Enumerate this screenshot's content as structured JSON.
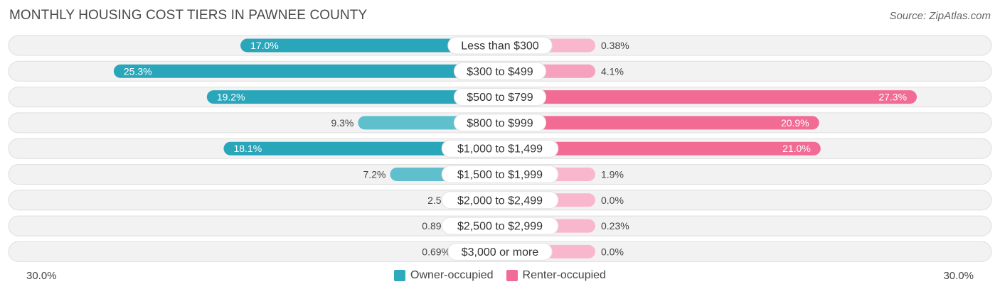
{
  "title": "MONTHLY HOUSING COST TIERS IN PAWNEE COUNTY",
  "source": "Source: ZipAtlas.com",
  "axis": {
    "left_label": "30.0%",
    "right_label": "30.0%"
  },
  "legend": [
    {
      "label": "Owner-occupied",
      "color": "#2eaabd"
    },
    {
      "label": "Renter-occupied",
      "color": "#f06c97"
    }
  ],
  "chart_data": {
    "type": "bar",
    "orientation": "diverging-horizontal",
    "title": "MONTHLY HOUSING COST TIERS IN PAWNEE COUNTY",
    "xlim": [
      -30,
      30
    ],
    "categories": [
      "Less than $300",
      "$300 to $499",
      "$500 to $799",
      "$800 to $999",
      "$1,000 to $1,499",
      "$1,500 to $1,999",
      "$2,000 to $2,499",
      "$2,500 to $2,999",
      "$3,000 or more"
    ],
    "series": [
      {
        "name": "Owner-occupied",
        "values": [
          17.0,
          25.3,
          19.2,
          9.3,
          18.1,
          7.2,
          2.5,
          0.89,
          0.69
        ],
        "labels": [
          "17.0%",
          "25.3%",
          "19.2%",
          "9.3%",
          "18.1%",
          "7.2%",
          "2.5%",
          "0.89%",
          "0.69%"
        ]
      },
      {
        "name": "Renter-occupied",
        "values": [
          0.38,
          4.1,
          27.3,
          20.9,
          21.0,
          1.9,
          0.0,
          0.23,
          0.0
        ],
        "labels": [
          "0.38%",
          "4.1%",
          "27.3%",
          "20.9%",
          "21.0%",
          "1.9%",
          "0.0%",
          "0.23%",
          "0.0%"
        ]
      }
    ]
  }
}
